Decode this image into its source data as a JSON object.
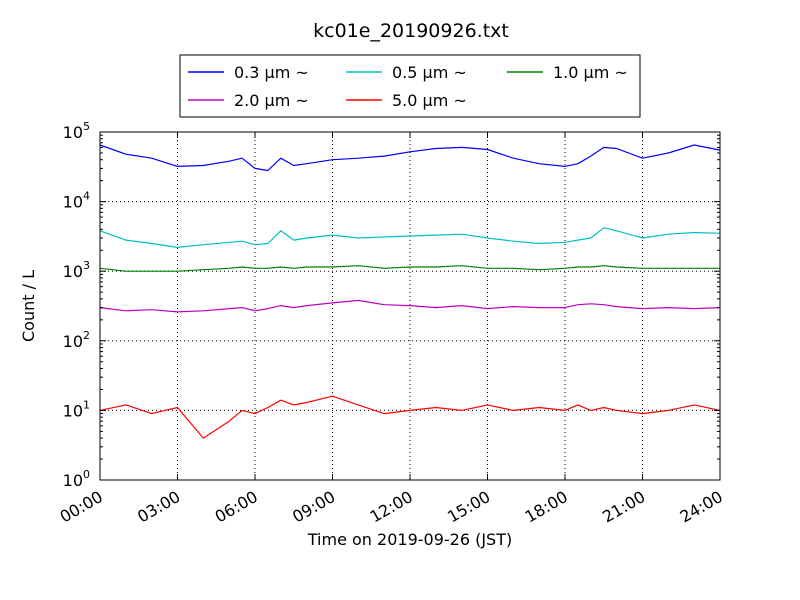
{
  "chart_data": {
    "type": "line",
    "title": "kc01e_20190926.txt",
    "xlabel": "Time on 2019-09-26 (JST)",
    "ylabel": "Count / L",
    "yscale": "log",
    "ylim": [
      1,
      100000
    ],
    "xlim": [
      "00:00",
      "24:00"
    ],
    "grid": true,
    "legend_position": "top-center",
    "x_tick_labels": [
      "00:00",
      "03:00",
      "06:00",
      "09:00",
      "12:00",
      "15:00",
      "18:00",
      "21:00",
      "24:00"
    ],
    "y_tick_labels": [
      {
        "base": "10",
        "exp": "0"
      },
      {
        "base": "10",
        "exp": "1"
      },
      {
        "base": "10",
        "exp": "2"
      },
      {
        "base": "10",
        "exp": "3"
      },
      {
        "base": "10",
        "exp": "4"
      },
      {
        "base": "10",
        "exp": "5"
      }
    ],
    "x_hours": [
      0,
      1,
      2,
      3,
      4,
      5,
      5.5,
      6,
      6.5,
      7,
      7.5,
      8,
      9,
      10,
      11,
      12,
      13,
      14,
      15,
      16,
      17,
      18,
      18.5,
      19,
      19.5,
      20,
      21,
      22,
      23,
      24
    ],
    "series": [
      {
        "name": "0.3 μm ~",
        "color": "#0000ff",
        "values": [
          65000,
          48000,
          42000,
          32000,
          33000,
          38000,
          42000,
          30000,
          28000,
          42000,
          33000,
          35000,
          40000,
          42000,
          45000,
          52000,
          58000,
          60000,
          56000,
          42000,
          35000,
          32000,
          35000,
          45000,
          60000,
          58000,
          42000,
          50000,
          65000,
          55000
        ]
      },
      {
        "name": "0.5 μm ~",
        "color": "#00bfbf",
        "values": [
          3800,
          2800,
          2500,
          2200,
          2400,
          2600,
          2700,
          2400,
          2500,
          3800,
          2800,
          3000,
          3300,
          3000,
          3100,
          3200,
          3300,
          3400,
          3000,
          2700,
          2500,
          2600,
          2800,
          3000,
          4200,
          3800,
          3000,
          3400,
          3600,
          3500
        ]
      },
      {
        "name": "1.0 μm ~",
        "color": "#008000",
        "values": [
          1100,
          1000,
          1000,
          1000,
          1050,
          1100,
          1150,
          1100,
          1100,
          1150,
          1100,
          1150,
          1150,
          1200,
          1100,
          1150,
          1150,
          1200,
          1100,
          1100,
          1050,
          1100,
          1150,
          1150,
          1200,
          1150,
          1100,
          1100,
          1100,
          1100
        ]
      },
      {
        "name": "2.0 μm ~",
        "color": "#bf00bf",
        "values": [
          300,
          270,
          280,
          260,
          270,
          290,
          300,
          270,
          290,
          320,
          300,
          320,
          350,
          380,
          330,
          320,
          300,
          320,
          290,
          310,
          300,
          300,
          330,
          340,
          330,
          310,
          290,
          300,
          290,
          300
        ]
      },
      {
        "name": "5.0 μm ~",
        "color": "#ff0000",
        "values": [
          10,
          12,
          9,
          11,
          4,
          7,
          10,
          9,
          11,
          14,
          12,
          13,
          16,
          12,
          9,
          10,
          11,
          10,
          12,
          10,
          11,
          10,
          12,
          10,
          11,
          10,
          9,
          10,
          12,
          10
        ]
      }
    ]
  }
}
